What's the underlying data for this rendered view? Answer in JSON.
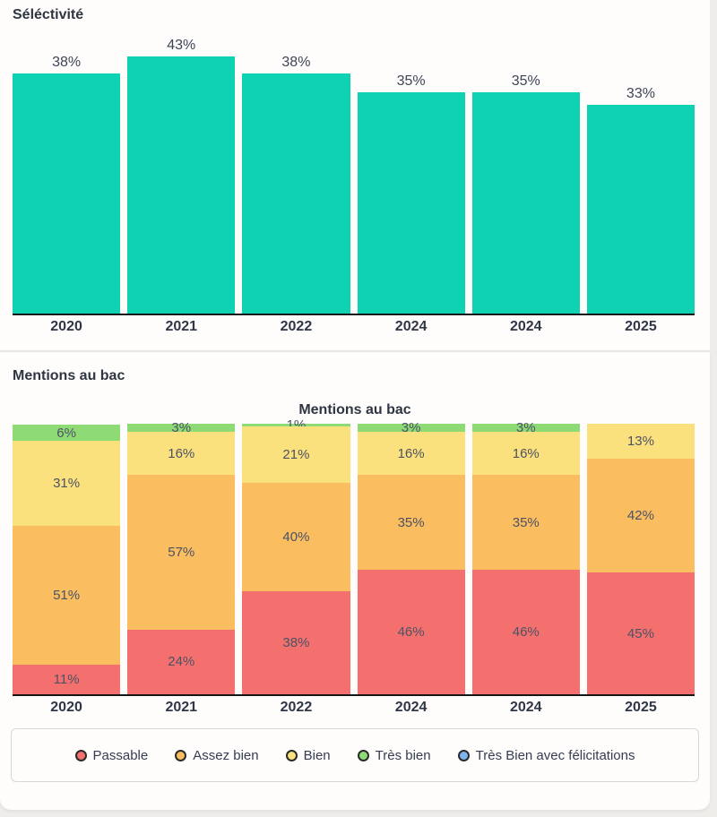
{
  "sections": [
    {
      "header": "Séléctivité"
    },
    {
      "header": "Mentions au bac"
    }
  ],
  "colors": {
    "teal": "#0fd2b2",
    "passable": "#f3706e",
    "assez_bien": "#fabd5f",
    "bien": "#fbe17d",
    "tres_bien": "#8eda75",
    "tres_bien_felicitations": "#7fb5ef",
    "axis": "#161616",
    "header_text": "#2f3542",
    "value_label_text": "#3e4457",
    "segment_label_text": "#4c5265"
  },
  "chart_data": [
    {
      "type": "bar",
      "title": "Séléctivité",
      "categories": [
        "2020",
        "2021",
        "2022",
        "2024",
        "2024",
        "2025"
      ],
      "values": [
        38,
        43,
        38,
        35,
        35,
        33
      ],
      "value_labels": [
        "38%",
        "43%",
        "38%",
        "35%",
        "35%",
        "33%"
      ],
      "xlabel": "",
      "ylabel": "",
      "ylim": [
        0,
        44
      ],
      "grid": false,
      "legend_position": "none",
      "bar_color_key": "teal"
    },
    {
      "type": "stacked-bar",
      "title": "Mentions au bac",
      "categories": [
        "2020",
        "2021",
        "2022",
        "2024",
        "2024",
        "2025"
      ],
      "series": [
        {
          "name": "Passable",
          "color_key": "passable",
          "values": [
            11,
            24,
            38,
            46,
            46,
            45
          ]
        },
        {
          "name": "Assez bien",
          "color_key": "assez_bien",
          "values": [
            51,
            57,
            40,
            35,
            35,
            42
          ]
        },
        {
          "name": "Bien",
          "color_key": "bien",
          "values": [
            31,
            16,
            21,
            16,
            16,
            13
          ]
        },
        {
          "name": "Très bien",
          "color_key": "tres_bien",
          "values": [
            6,
            3,
            1,
            3,
            3,
            0
          ]
        },
        {
          "name": "Très Bien avec félicitations",
          "color_key": "tres_bien_felicitations",
          "values": [
            0,
            0,
            0,
            0,
            0,
            0
          ]
        }
      ],
      "xlabel": "",
      "ylabel": "",
      "ylim": [
        0,
        100
      ],
      "grid": false,
      "legend_position": "bottom"
    }
  ],
  "legend": {
    "items": [
      {
        "label": "Passable",
        "color_key": "passable"
      },
      {
        "label": "Assez bien",
        "color_key": "assez_bien"
      },
      {
        "label": "Bien",
        "color_key": "bien"
      },
      {
        "label": "Très bien",
        "color_key": "tres_bien"
      },
      {
        "label": "Très Bien avec félicitations",
        "color_key": "tres_bien_felicitations"
      }
    ]
  }
}
